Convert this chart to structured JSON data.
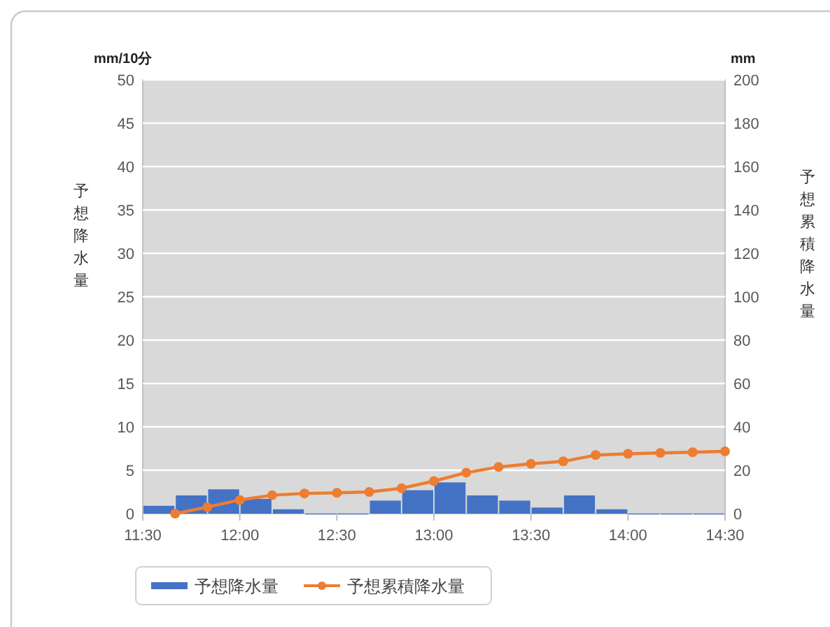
{
  "chart_data": {
    "type": "bar",
    "ylabel": "予想降水量",
    "y2label": "予想累積降水量",
    "annotations": [
      "mm/10分",
      "mm"
    ],
    "xlim": [
      11.5,
      14.5
    ],
    "xticks": [
      {
        "value": 11.5,
        "label": "11:30"
      },
      {
        "value": 12,
        "label": "12:00"
      },
      {
        "value": 12.5,
        "label": "12:30"
      },
      {
        "value": 13,
        "label": "13:00"
      },
      {
        "value": 13.5,
        "label": "13:30"
      },
      {
        "value": 14,
        "label": "14:00"
      },
      {
        "value": 14.5,
        "label": "14:30"
      }
    ],
    "ylim": [
      0,
      50
    ],
    "yticks": [
      0,
      5,
      10,
      15,
      20,
      25,
      30,
      35,
      40,
      45,
      50
    ],
    "y2lim": [
      0,
      200
    ],
    "y2ticks": [
      0,
      20,
      40,
      60,
      80,
      100,
      120,
      140,
      160,
      180,
      200
    ],
    "grid": "y",
    "legend": "bottom",
    "series": [
      {
        "name": "予想降水量",
        "color": "#4472c4",
        "x": [
          11.5833,
          11.75,
          11.9167,
          12.0833,
          12.25,
          12.4167,
          12.5833,
          12.75,
          12.9167,
          13.0833,
          13.25,
          13.4167,
          13.5833,
          13.75,
          13.9167,
          14.0833,
          14.25,
          14.4167
        ],
        "values": [
          0.9,
          2.1,
          2.8,
          1.7,
          0.5,
          0,
          0,
          1.5,
          2.7,
          3.6,
          2.1,
          1.5,
          0.7,
          2.1,
          0.5,
          0,
          0,
          0
        ]
      },
      {
        "name": "予想累積降水量",
        "type": "line",
        "axis": "y2",
        "color": "#ed7d31",
        "marker": "circle",
        "line_style": "solid",
        "x": [
          11.6667,
          11.8333,
          12,
          12.1667,
          12.3333,
          12.5,
          12.6667,
          12.8333,
          13,
          13.1667,
          13.3333,
          13.5,
          13.6667,
          13.8333,
          14,
          14.1667,
          14.3333,
          14.5
        ],
        "values": [
          0,
          3,
          6.3,
          8.5,
          9.3,
          9.6,
          10,
          11.7,
          15,
          18.9,
          21.5,
          23,
          24.1,
          27,
          27.6,
          28,
          28.3,
          28.7
        ]
      }
    ]
  }
}
